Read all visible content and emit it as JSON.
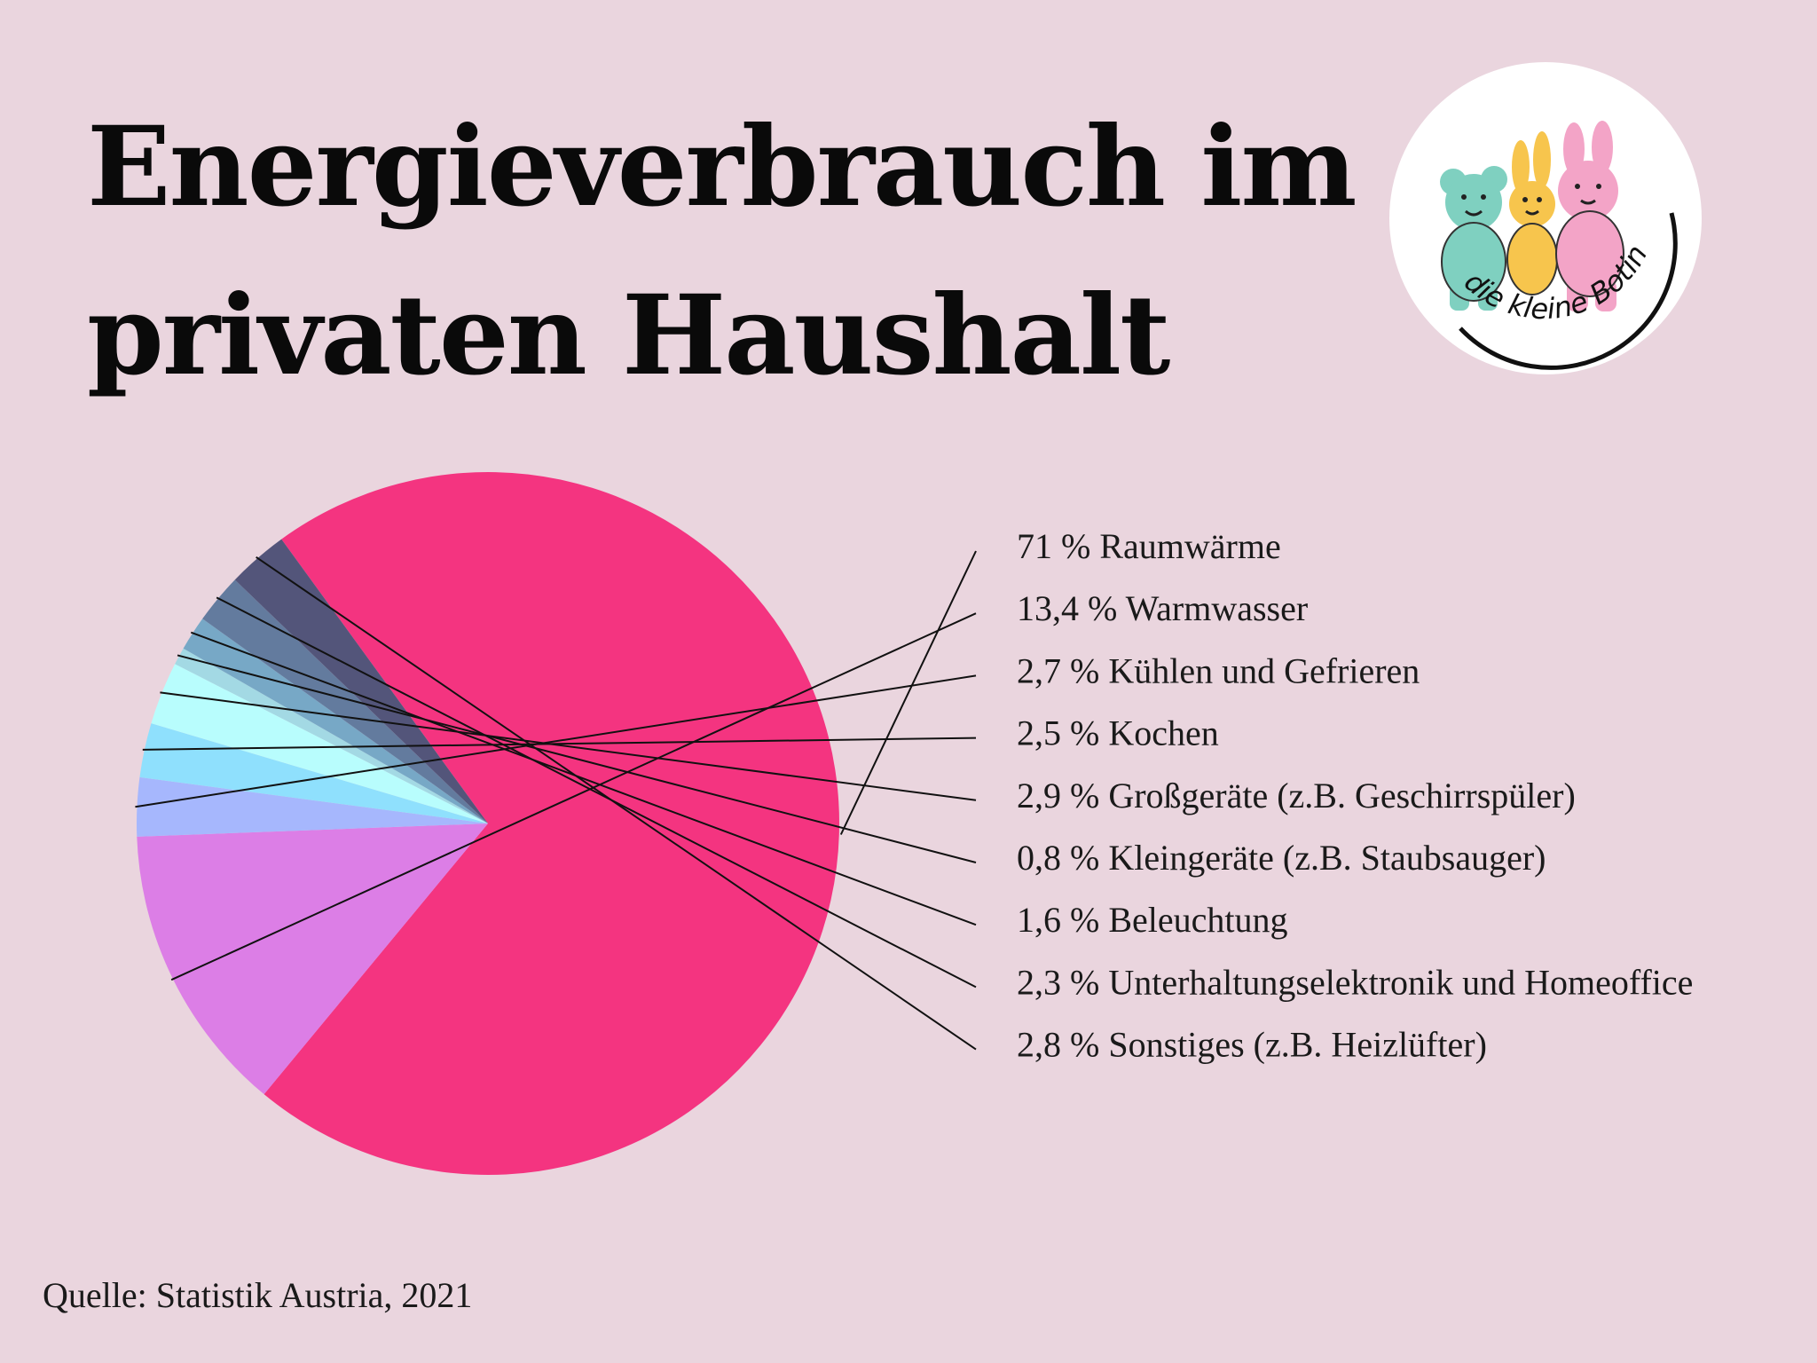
{
  "title": {
    "line1": "Energieverbrauch im",
    "line2": "privaten Haushalt"
  },
  "logo": {
    "text": "die kleine Botin",
    "icon": "teddy-bears-logo-icon"
  },
  "source": "Quelle: Statistik Austria, 2021",
  "chart_data": {
    "type": "pie",
    "slices": [
      {
        "label": "71 % Raumwärme",
        "value": 71,
        "color": "#f43480"
      },
      {
        "label": "13,4 % Warmwasser",
        "value": 13.4,
        "color": "#dc7ee6"
      },
      {
        "label": "2,7 % Kühlen und Gefrieren",
        "value": 2.7,
        "color": "#a6b7fd"
      },
      {
        "label": "2,5 % Kochen",
        "value": 2.5,
        "color": "#8fe0fd"
      },
      {
        "label": "2,9 % Großgeräte (z.B. Geschirrspüler)",
        "value": 2.9,
        "color": "#b8fdfd"
      },
      {
        "label": "0,8 % Kleingeräte (z.B. Staubsauger)",
        "value": 0.8,
        "color": "#a3d9e4"
      },
      {
        "label": "1,6 % Beleuchtung",
        "value": 1.6,
        "color": "#77a8c6"
      },
      {
        "label": "2,3 % Unterhaltungselektronik und Homeoffice",
        "value": 2.3,
        "color": "#637b9e"
      },
      {
        "label": "2,8 % Sonstiges (z.B. Heizlüfter)",
        "value": 2.8,
        "color": "#53557a"
      }
    ]
  }
}
